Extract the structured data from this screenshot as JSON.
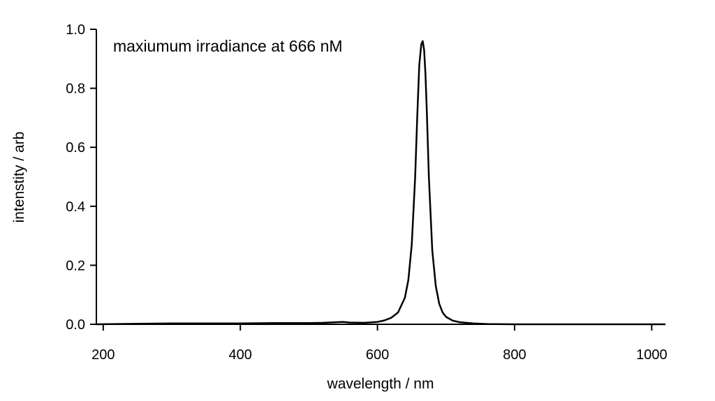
{
  "chart_data": {
    "type": "line",
    "title": "",
    "xlabel": "wavelength / nm",
    "ylabel": "intenstity / arb",
    "annotation": "maxiumum irradiance at 666 nM",
    "xlim": [
      190,
      1020
    ],
    "ylim": [
      0,
      1.0
    ],
    "xticks": [
      200,
      400,
      600,
      800,
      1000
    ],
    "xtick_labels": [
      "200",
      "400",
      "600",
      "800",
      "1000"
    ],
    "yticks": [
      0,
      0.2,
      0.4,
      0.6,
      0.8,
      1.0
    ],
    "ytick_labels": [
      "0.0",
      "0.2",
      "0.4",
      "0.6",
      "0.8",
      "1.0"
    ],
    "grid": false,
    "series": [
      {
        "color": "#000000",
        "x": [
          190,
          250,
          300,
          350,
          400,
          450,
          500,
          520,
          540,
          550,
          560,
          580,
          600,
          610,
          620,
          630,
          640,
          645,
          650,
          655,
          658,
          661,
          664,
          666,
          668,
          670,
          672,
          675,
          680,
          685,
          690,
          695,
          700,
          710,
          720,
          740,
          760,
          800,
          900,
          1020
        ],
        "y": [
          0.0,
          0.002,
          0.003,
          0.003,
          0.003,
          0.004,
          0.004,
          0.005,
          0.007,
          0.008,
          0.006,
          0.005,
          0.008,
          0.013,
          0.022,
          0.04,
          0.09,
          0.15,
          0.27,
          0.5,
          0.7,
          0.88,
          0.95,
          0.96,
          0.93,
          0.85,
          0.72,
          0.5,
          0.25,
          0.13,
          0.07,
          0.04,
          0.025,
          0.012,
          0.007,
          0.003,
          0.001,
          0.0,
          0.0,
          0.0
        ]
      }
    ]
  }
}
